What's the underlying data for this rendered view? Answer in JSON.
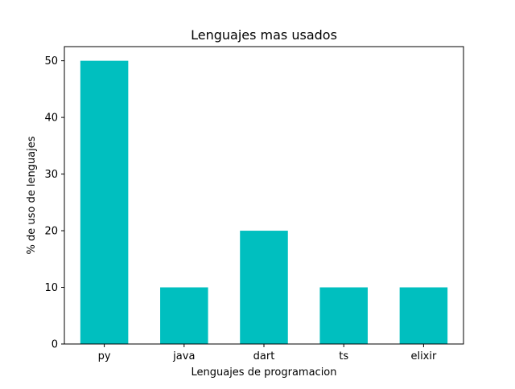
{
  "chart_data": {
    "type": "bar",
    "title": "Lenguajes mas usados",
    "xlabel": "Lenguajes de programacion",
    "ylabel": "% de uso de lenguajes",
    "categories": [
      "py",
      "java",
      "dart",
      "ts",
      "elixir"
    ],
    "values": [
      50,
      10,
      20,
      10,
      10
    ],
    "ylim": [
      0,
      52.5
    ],
    "yticks": [
      0,
      10,
      20,
      30,
      40,
      50
    ],
    "grid": false,
    "legend": "none",
    "bar_color": "#00bfbf"
  }
}
